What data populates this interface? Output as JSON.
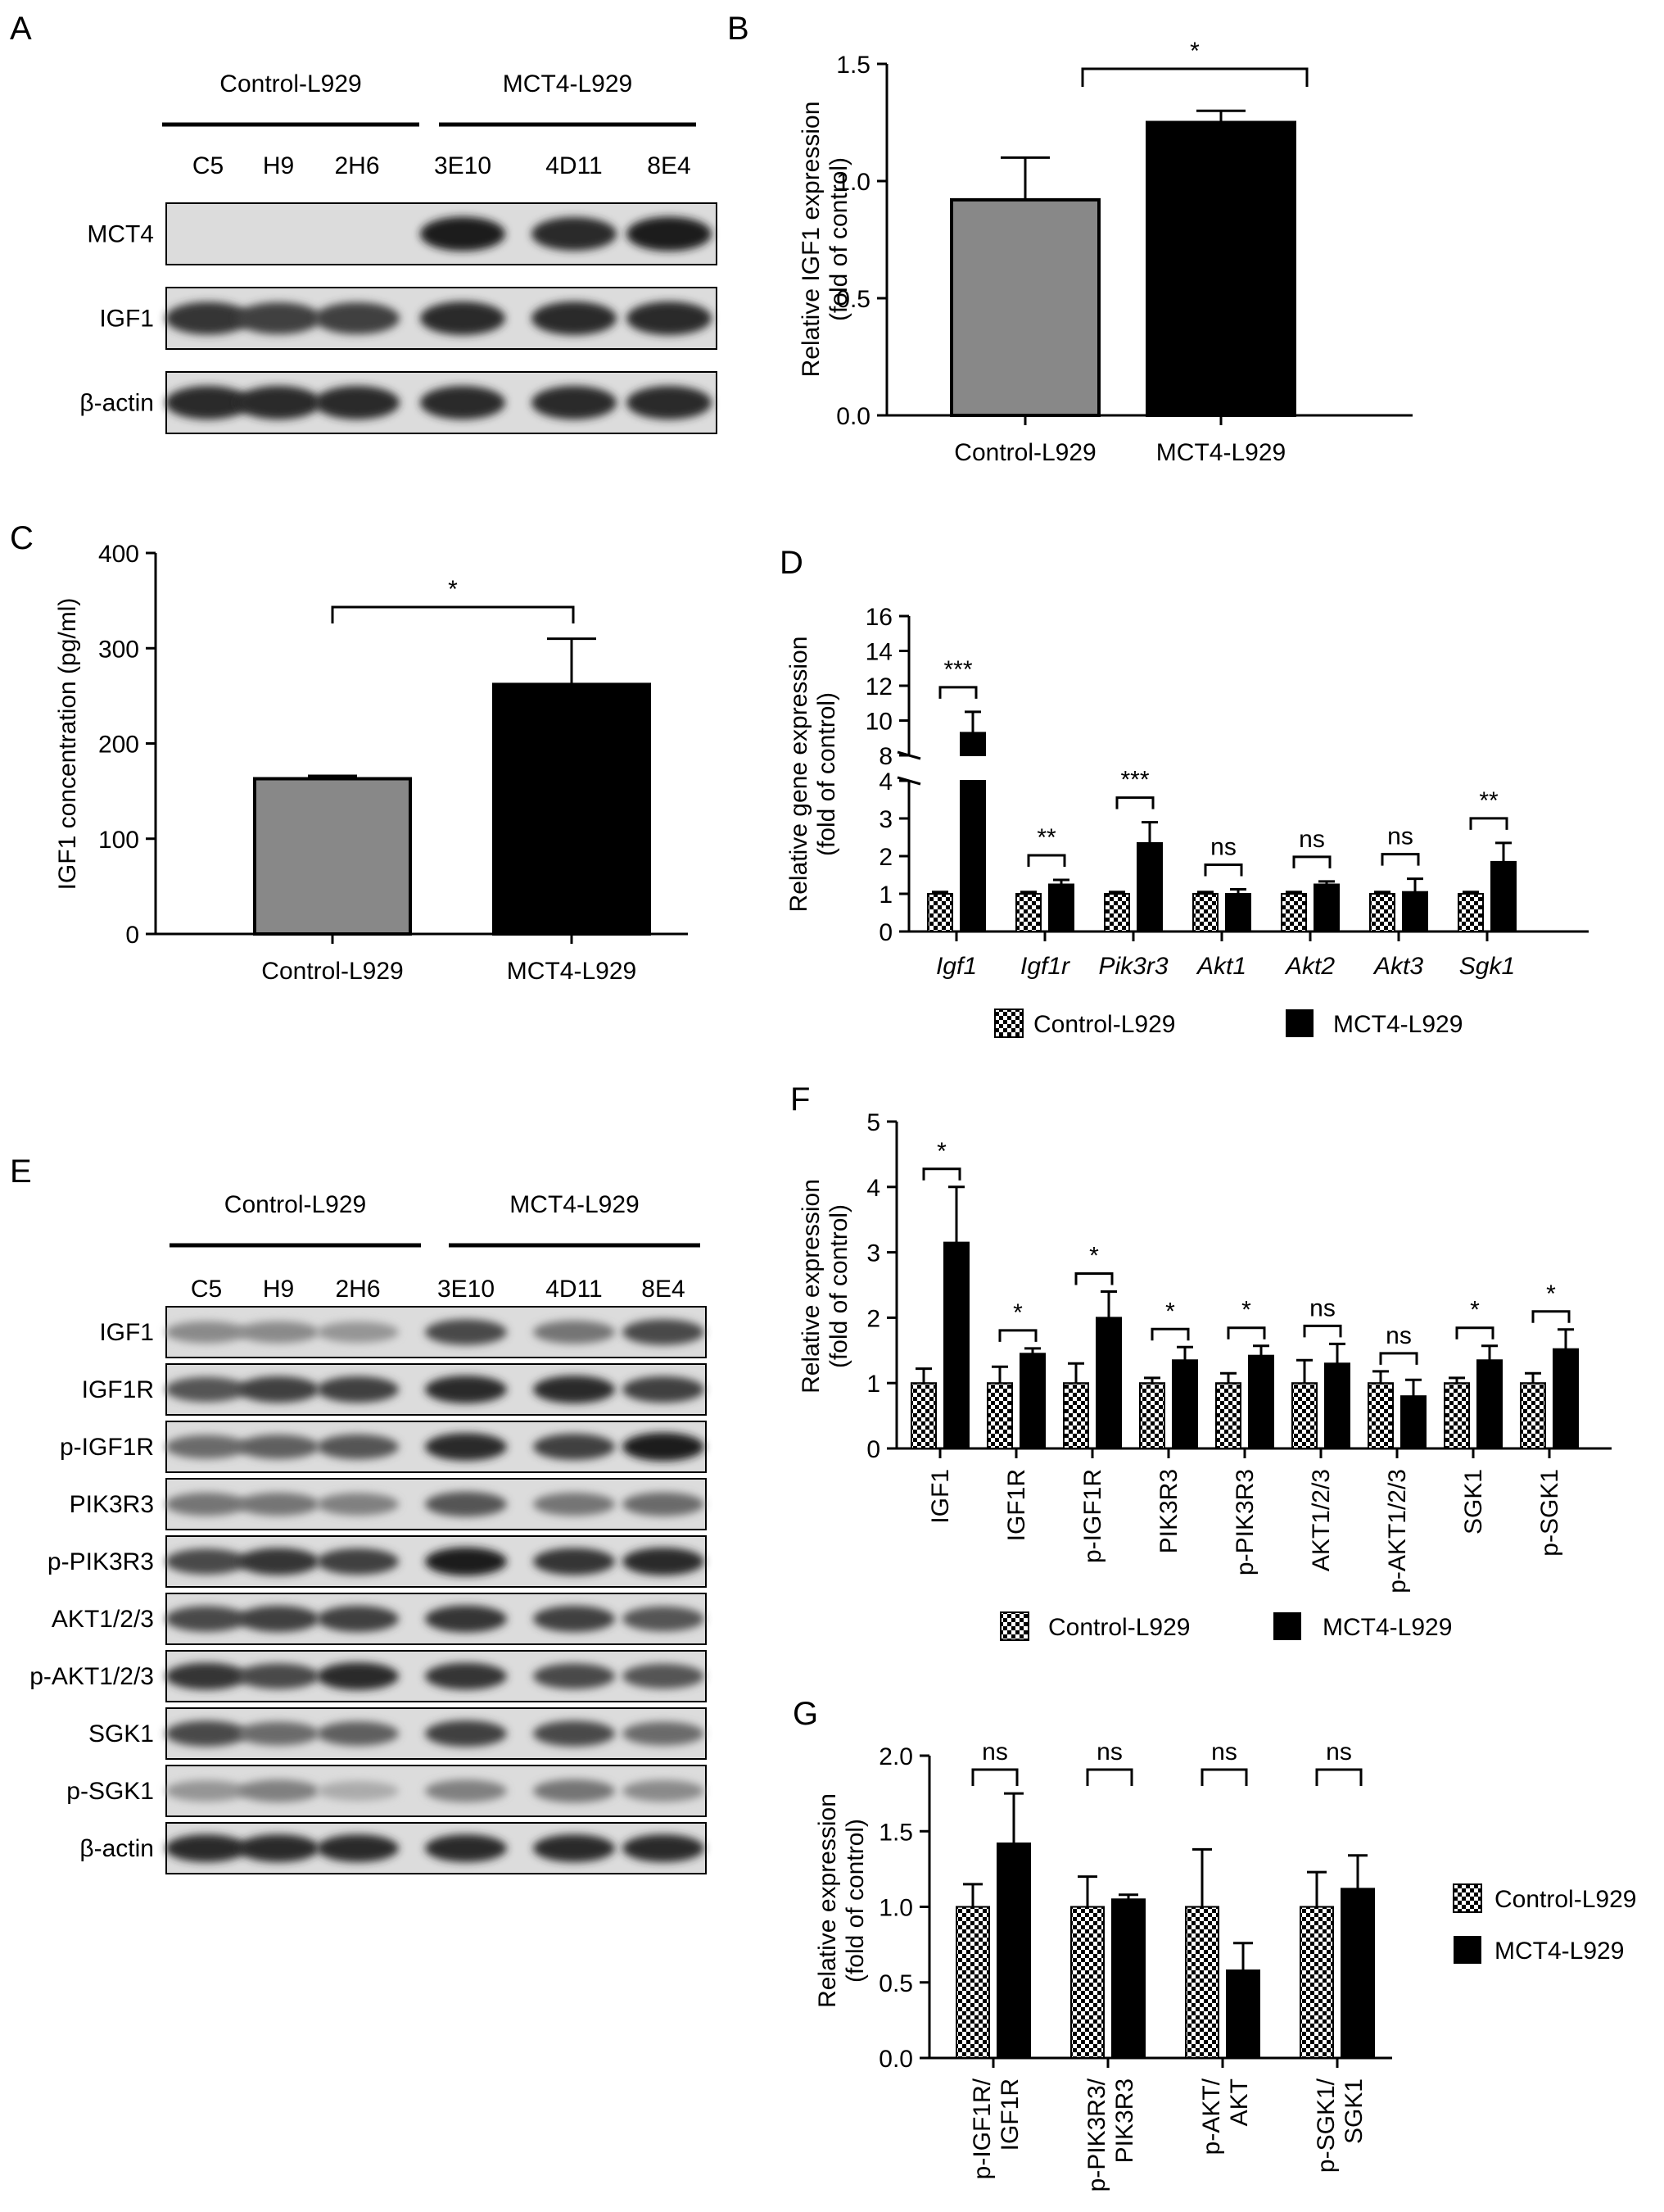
{
  "colors": {
    "control": "#888888",
    "mct4": "#000000",
    "axis": "#000000",
    "blot_bg": "#dcdcdc"
  },
  "legend": {
    "control": "Control-L929",
    "mct4": "MCT4-L929"
  },
  "panels": {
    "A": {
      "letter": "A",
      "groups": [
        "Control-L929",
        "MCT4-L929"
      ],
      "lanes": [
        "C5",
        "H9",
        "2H6",
        "3E10",
        "4D11",
        "8E4"
      ],
      "bands": [
        {
          "label": "MCT4",
          "intensity": [
            0.0,
            0.0,
            0.0,
            0.95,
            0.9,
            0.95
          ]
        },
        {
          "label": "IGF1",
          "intensity": [
            0.85,
            0.8,
            0.8,
            0.9,
            0.9,
            0.9
          ]
        },
        {
          "label": "β-actin",
          "intensity": [
            0.9,
            0.9,
            0.9,
            0.9,
            0.9,
            0.9
          ]
        }
      ]
    },
    "E": {
      "letter": "E",
      "groups": [
        "Control-L929",
        "MCT4-L929"
      ],
      "lanes": [
        "C5",
        "H9",
        "2H6",
        "3E10",
        "4D11",
        "8E4"
      ],
      "bands": [
        {
          "label": "IGF1",
          "intensity": [
            0.45,
            0.45,
            0.4,
            0.75,
            0.55,
            0.75
          ]
        },
        {
          "label": "IGF1R",
          "intensity": [
            0.7,
            0.8,
            0.8,
            0.9,
            0.9,
            0.8
          ]
        },
        {
          "label": "p-IGF1R",
          "intensity": [
            0.6,
            0.65,
            0.7,
            0.9,
            0.8,
            0.95
          ]
        },
        {
          "label": "PIK3R3",
          "intensity": [
            0.55,
            0.55,
            0.5,
            0.7,
            0.55,
            0.6
          ]
        },
        {
          "label": "p-PIK3R3",
          "intensity": [
            0.75,
            0.85,
            0.8,
            0.95,
            0.85,
            0.9
          ]
        },
        {
          "label": "AKT1/2/3",
          "intensity": [
            0.75,
            0.8,
            0.8,
            0.85,
            0.8,
            0.7
          ]
        },
        {
          "label": "p-AKT1/2/3",
          "intensity": [
            0.85,
            0.75,
            0.9,
            0.85,
            0.75,
            0.7
          ]
        },
        {
          "label": "SGK1",
          "intensity": [
            0.75,
            0.6,
            0.65,
            0.8,
            0.75,
            0.6
          ]
        },
        {
          "label": "p-SGK1",
          "intensity": [
            0.4,
            0.5,
            0.3,
            0.5,
            0.55,
            0.45
          ]
        },
        {
          "label": "β-actin",
          "intensity": [
            0.9,
            0.9,
            0.9,
            0.9,
            0.9,
            0.9
          ]
        }
      ]
    }
  },
  "chart_data": [
    {
      "id": "B",
      "type": "bar",
      "letter": "B",
      "ylabel": "Relative IGF1 expression (fold of control)",
      "ylabel_lines": [
        "Relative IGF1 expression",
        "(fold of control)"
      ],
      "ylim": [
        0,
        1.5
      ],
      "yticks": [
        0.0,
        0.5,
        1.0,
        1.5
      ],
      "ytick_labels": [
        "0.0",
        "0.5",
        "1.0",
        "1.5"
      ],
      "categories": [
        "Control-L929",
        "MCT4-L929"
      ],
      "values": [
        0.92,
        1.25
      ],
      "errors": [
        0.18,
        0.05
      ],
      "significance": [
        {
          "from": 0,
          "to": 1,
          "label": "*"
        }
      ]
    },
    {
      "id": "C",
      "type": "bar",
      "letter": "C",
      "ylabel": "IGF1 concentration (pg/ml)",
      "ylim": [
        0,
        400
      ],
      "yticks": [
        0,
        100,
        200,
        300,
        400
      ],
      "ytick_labels": [
        "0",
        "100",
        "200",
        "300",
        "400"
      ],
      "categories": [
        "Control-L929",
        "MCT4-L929"
      ],
      "values": [
        163,
        262
      ],
      "errors": [
        3,
        48
      ],
      "significance": [
        {
          "from": 0,
          "to": 1,
          "label": "*"
        }
      ]
    },
    {
      "id": "D",
      "type": "bar",
      "letter": "D",
      "ylabel": "Relative gene expression (fold of control)",
      "ylabel_lines": [
        "Relative gene expression",
        "(fold of control)"
      ],
      "broken_axis": {
        "lower": [
          0,
          4
        ],
        "upper": [
          8,
          16
        ]
      },
      "yticks_lower": [
        0,
        1,
        2,
        3,
        4
      ],
      "ytick_labels_lower": [
        "0",
        "1",
        "2",
        "3",
        "4"
      ],
      "yticks_upper": [
        8,
        10,
        12,
        14,
        16
      ],
      "ytick_labels_upper": [
        "8",
        "10",
        "12",
        "14",
        "16"
      ],
      "categories": [
        "Igf1",
        "Igf1r",
        "Pik3r3",
        "Akt1",
        "Akt2",
        "Akt3",
        "Sgk1"
      ],
      "italic_categories": true,
      "series": [
        {
          "name": "Control-L929",
          "values": [
            1.0,
            1.0,
            1.0,
            1.0,
            1.0,
            1.0,
            1.0
          ],
          "errors": [
            0.05,
            0.05,
            0.05,
            0.05,
            0.05,
            0.05,
            0.05
          ]
        },
        {
          "name": "MCT4-L929",
          "values": [
            9.3,
            1.25,
            2.35,
            1.0,
            1.25,
            1.05,
            1.85
          ],
          "errors": [
            1.2,
            0.12,
            0.55,
            0.12,
            0.08,
            0.35,
            0.5
          ]
        }
      ],
      "significance": [
        "***",
        "**",
        "***",
        "ns",
        "ns",
        "ns",
        "**"
      ]
    },
    {
      "id": "F",
      "type": "bar",
      "letter": "F",
      "ylabel": "Relative expression (fold of control)",
      "ylabel_lines": [
        "Relative expression",
        "(fold of control)"
      ],
      "ylim": [
        0,
        5
      ],
      "yticks": [
        0,
        1,
        2,
        3,
        4,
        5
      ],
      "ytick_labels": [
        "0",
        "1",
        "2",
        "3",
        "4",
        "5"
      ],
      "categories": [
        "IGF1",
        "IGF1R",
        "p-IGF1R",
        "PIK3R3",
        "p-PIK3R3",
        "AKT1/2/3",
        "p-AKT1/2/3",
        "SGK1",
        "p-SGK1"
      ],
      "series": [
        {
          "name": "Control-L929",
          "values": [
            1,
            1,
            1,
            1,
            1,
            1,
            1,
            1,
            1
          ],
          "errors": [
            0.22,
            0.25,
            0.3,
            0.08,
            0.15,
            0.35,
            0.18,
            0.08,
            0.15
          ]
        },
        {
          "name": "MCT4-L929",
          "values": [
            3.15,
            1.45,
            2.0,
            1.35,
            1.42,
            1.3,
            0.8,
            1.35,
            1.52
          ],
          "errors": [
            0.85,
            0.08,
            0.4,
            0.2,
            0.15,
            0.3,
            0.25,
            0.22,
            0.3
          ]
        }
      ],
      "significance": [
        "*",
        "*",
        "*",
        "*",
        "*",
        "ns",
        "ns",
        "*",
        "*"
      ]
    },
    {
      "id": "G",
      "type": "bar",
      "letter": "G",
      "ylabel": "Relative expression (fold of control)",
      "ylabel_lines": [
        "Relative expression",
        "(fold of control)"
      ],
      "ylim": [
        0,
        2.0
      ],
      "yticks": [
        0.0,
        0.5,
        1.0,
        1.5,
        2.0
      ],
      "ytick_labels": [
        "0.0",
        "0.5",
        "1.0",
        "1.5",
        "2.0"
      ],
      "categories": [
        "p-IGF1R/ IGF1R",
        "p-PIK3R3/ PIK3R3",
        "p-AKT/ AKT",
        "p-SGK1/ SGK1"
      ],
      "category_lines": [
        [
          "p-IGF1R/",
          "IGF1R"
        ],
        [
          "p-PIK3R3/",
          "PIK3R3"
        ],
        [
          "p-AKT/",
          "AKT"
        ],
        [
          "p-SGK1/",
          "SGK1"
        ]
      ],
      "series": [
        {
          "name": "Control-L929",
          "values": [
            1.0,
            1.0,
            1.0,
            1.0
          ],
          "errors": [
            0.15,
            0.2,
            0.38,
            0.23
          ]
        },
        {
          "name": "MCT4-L929",
          "values": [
            1.42,
            1.05,
            0.58,
            1.12
          ],
          "errors": [
            0.33,
            0.03,
            0.18,
            0.22
          ]
        }
      ],
      "significance": [
        "ns",
        "ns",
        "ns",
        "ns"
      ]
    }
  ]
}
